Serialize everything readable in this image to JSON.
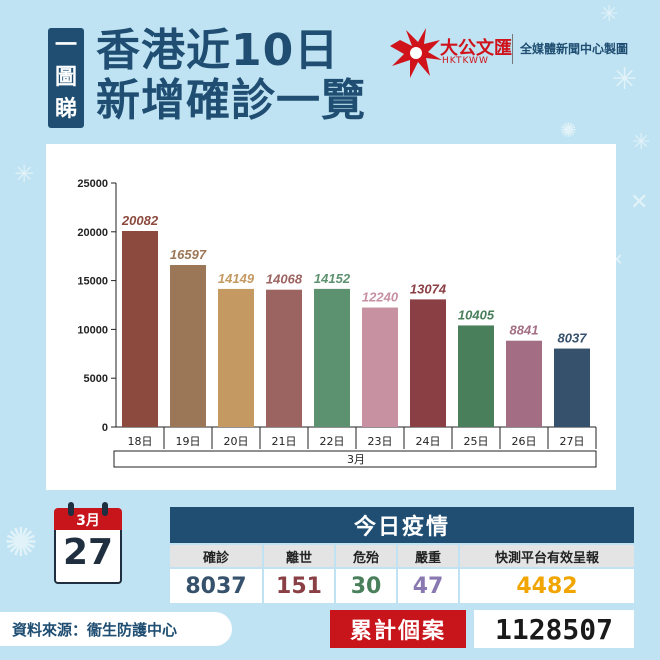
{
  "header": {
    "tag_chars": [
      "一",
      "圖",
      "睇"
    ],
    "title_line1": "香港近10日",
    "title_line2": "新增確診一覽",
    "brand_name": "大公文匯",
    "brand_sub": "HKTKWW",
    "credit": "全媒體新聞中心製圖"
  },
  "chart_data": {
    "type": "bar",
    "categories": [
      "18日",
      "19日",
      "20日",
      "21日",
      "22日",
      "23日",
      "24日",
      "25日",
      "26日",
      "27日"
    ],
    "values": [
      20082,
      16597,
      14149,
      14068,
      14152,
      12240,
      13074,
      10405,
      8841,
      8037
    ],
    "value_labels": [
      "20082",
      "16597",
      "14149",
      "14068",
      "14152",
      "12240",
      "13074",
      "10405",
      "8841",
      "8037"
    ],
    "bar_colors": [
      "#8c4a3e",
      "#9b7657",
      "#c49a62",
      "#9c6461",
      "#5d9270",
      "#c791a2",
      "#8a3f44",
      "#4a7f5c",
      "#a36e83",
      "#35516b"
    ],
    "label_colors": [
      "#8c4a3e",
      "#9b7657",
      "#c49a62",
      "#9c6461",
      "#5d9270",
      "#c791a2",
      "#8a3f44",
      "#4a7f5c",
      "#a36e83",
      "#35516b"
    ],
    "xgroup": "3月",
    "ylim": [
      0,
      25000
    ],
    "yticks": [
      "0",
      "5000",
      "10000",
      "15000",
      "20000",
      "25000"
    ],
    "grid": false,
    "legend": "none"
  },
  "date_badge": {
    "month": "3月",
    "day": "27"
  },
  "today": {
    "title": "今日疫情",
    "columns": [
      {
        "label": "確診",
        "value": "8037",
        "color": "#35516b"
      },
      {
        "label": "離世",
        "value": "151",
        "color": "#8a3f44"
      },
      {
        "label": "危殆",
        "value": "30",
        "color": "#4a7f5c"
      },
      {
        "label": "嚴重",
        "value": "47",
        "color": "#8a78b0"
      },
      {
        "label": "快測平台有效呈報",
        "value": "4482",
        "color": "#f0a500"
      }
    ]
  },
  "footer": {
    "source": "資料來源：衞生防護中心",
    "cumulative_label": "累計個案",
    "cumulative_value": "1128507"
  }
}
